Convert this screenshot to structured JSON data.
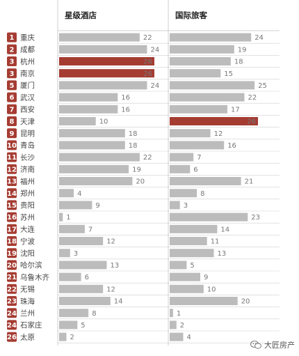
{
  "chart_data": {
    "type": "bar",
    "orientation": "horizontal",
    "series": [
      {
        "name": "星级酒店",
        "values": [
          22,
          24,
          26,
          26,
          24,
          16,
          16,
          10,
          18,
          18,
          22,
          19,
          20,
          4,
          9,
          1,
          7,
          12,
          3,
          13,
          6,
          12,
          14,
          8,
          5,
          2
        ],
        "highlight_index": [
          2,
          3
        ]
      },
      {
        "name": "国际旅客",
        "values": [
          24,
          19,
          18,
          15,
          25,
          22,
          17,
          26,
          12,
          16,
          7,
          6,
          21,
          8,
          3,
          23,
          14,
          11,
          13,
          5,
          9,
          10,
          20,
          1,
          2,
          4
        ],
        "highlight_index": [
          7
        ]
      }
    ],
    "categories": [
      "重庆",
      "成都",
      "杭州",
      "南京",
      "厦门",
      "武汉",
      "西安",
      "天津",
      "昆明",
      "青岛",
      "长沙",
      "济南",
      "福州",
      "郑州",
      "贵阳",
      "苏州",
      "大连",
      "宁波",
      "沈阳",
      "哈尔滨",
      "乌鲁木齐",
      "无锡",
      "珠海",
      "兰州",
      "石家庄",
      "太原"
    ],
    "ranks": [
      "1",
      "2",
      "3",
      "3",
      "5",
      "6",
      "7",
      "8",
      "9",
      "10",
      "11",
      "12",
      "13",
      "14",
      "15",
      "16",
      "17",
      "18",
      "19",
      "20",
      "21",
      "22",
      "23",
      "24",
      "24",
      "26"
    ],
    "xlim": [
      0,
      26
    ],
    "colors": {
      "bar": "#bdbcbc",
      "highlight": "#a53c32",
      "rank_badge": "#a53c32",
      "grid": "#cfcfcf"
    }
  },
  "watermark": {
    "text": "大匠房产",
    "icon": "wechat-icon"
  }
}
